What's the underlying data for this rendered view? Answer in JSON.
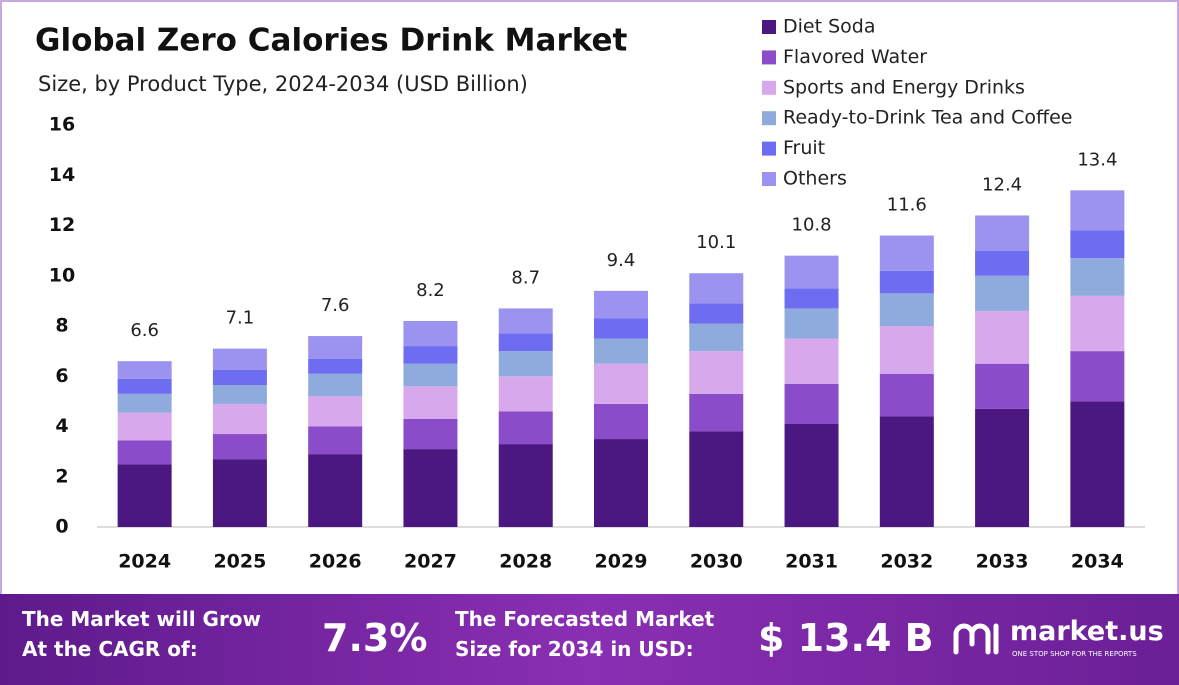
{
  "chart_data": {
    "type": "stacked-bar",
    "title": "Global Zero Calories Drink Market",
    "subtitle": "Size, by Product Type, 2024-2034 (USD Billion)",
    "categories": [
      "2024",
      "2025",
      "2026",
      "2027",
      "2028",
      "2029",
      "2030",
      "2031",
      "2032",
      "2033",
      "2034"
    ],
    "series": [
      {
        "name": "Diet Soda",
        "color": "#4b1780",
        "values": [
          2.5,
          2.7,
          2.9,
          3.1,
          3.3,
          3.5,
          3.8,
          4.1,
          4.4,
          4.7,
          5.0
        ]
      },
      {
        "name": "Flavored Water",
        "color": "#8a4cc8",
        "values": [
          0.95,
          1.0,
          1.1,
          1.2,
          1.3,
          1.4,
          1.5,
          1.6,
          1.7,
          1.8,
          2.0
        ]
      },
      {
        "name": "Sports and Energy Drinks",
        "color": "#d7a9ec",
        "values": [
          1.1,
          1.2,
          1.2,
          1.3,
          1.4,
          1.6,
          1.7,
          1.8,
          1.9,
          2.1,
          2.2
        ]
      },
      {
        "name": "Ready-to-Drink Tea and Coffee",
        "color": "#8faadc",
        "values": [
          0.75,
          0.75,
          0.9,
          0.9,
          1.0,
          1.0,
          1.1,
          1.2,
          1.3,
          1.4,
          1.5
        ]
      },
      {
        "name": "Fruit",
        "color": "#6e6cf0",
        "values": [
          0.6,
          0.6,
          0.6,
          0.7,
          0.7,
          0.8,
          0.8,
          0.8,
          0.9,
          1.0,
          1.1
        ]
      },
      {
        "name": "Others",
        "color": "#9b93ef",
        "values": [
          0.7,
          0.85,
          0.9,
          1.0,
          1.0,
          1.1,
          1.2,
          1.3,
          1.4,
          1.4,
          1.6
        ]
      }
    ],
    "totals": [
      6.6,
      7.1,
      7.6,
      8.2,
      8.7,
      9.4,
      10.1,
      10.8,
      11.6,
      12.4,
      13.4
    ],
    "ylim": [
      0,
      16
    ],
    "yticks": [
      0,
      2,
      4,
      6,
      8,
      10,
      12,
      14,
      16
    ],
    "grid": false,
    "legend": "upper right"
  },
  "footer": {
    "cagr_label": [
      "The Market will Grow",
      "At the CAGR of:"
    ],
    "cagr_value": "7.3%",
    "forecast_label": [
      "The Forecasted Market",
      "Size for 2034 in USD:"
    ],
    "forecast_value": "$ 13.4 B",
    "brand": "market.us",
    "tagline": "ONE STOP SHOP FOR THE REPORTS"
  }
}
